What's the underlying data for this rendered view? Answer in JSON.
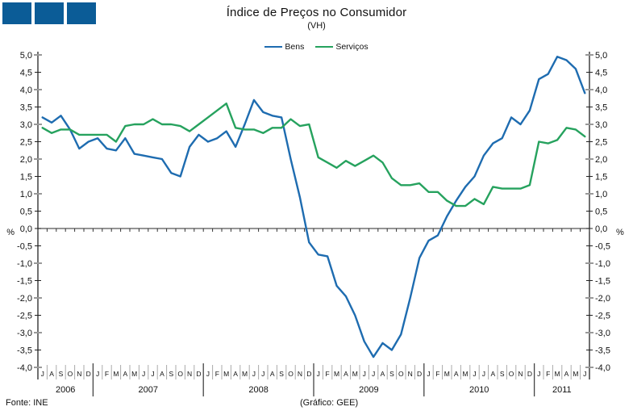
{
  "header": {
    "logo_squares": 3,
    "brand_color": "#0b5c97"
  },
  "title": "Índice de Preços no Consumidor",
  "subtitle": "(VH)",
  "legend": {
    "items": [
      {
        "label": "Bens",
        "color": "#1e6cb0"
      },
      {
        "label": "Serviços",
        "color": "#26a25e"
      }
    ]
  },
  "y_axis": {
    "unit_label_left": "%",
    "unit_label_right": "%",
    "tick_labels": [
      "5,0",
      "4,5",
      "4,0",
      "3,5",
      "3,0",
      "2,5",
      "2,0",
      "1,5",
      "1,0",
      "0,5",
      "0,0",
      "-0,5",
      "-1,0",
      "-1,5",
      "-2,0",
      "-2,5",
      "-3,0",
      "-3,5",
      "-4,0"
    ]
  },
  "footer": {
    "source": "Fonte: INE",
    "credit": "(Gráfico: GEE)"
  },
  "chart_data": {
    "type": "line",
    "title": "Índice de Preços no Consumidor",
    "subtitle": "(VH)",
    "ylabel": "%",
    "ylim": [
      -4.0,
      5.0
    ],
    "ytick_step": 0.5,
    "grid": false,
    "legend_position": "top-center",
    "x_years": [
      {
        "label": "2006",
        "months": [
          "J",
          "A",
          "S",
          "O",
          "N",
          "D"
        ]
      },
      {
        "label": "2007",
        "months": [
          "J",
          "F",
          "M",
          "A",
          "M",
          "J",
          "J",
          "A",
          "S",
          "O",
          "N",
          "D"
        ]
      },
      {
        "label": "2008",
        "months": [
          "J",
          "F",
          "M",
          "A",
          "M",
          "J",
          "J",
          "A",
          "S",
          "O",
          "N",
          "D"
        ]
      },
      {
        "label": "2009",
        "months": [
          "J",
          "F",
          "M",
          "A",
          "M",
          "J",
          "J",
          "A",
          "S",
          "O",
          "N",
          "D"
        ]
      },
      {
        "label": "2010",
        "months": [
          "J",
          "F",
          "M",
          "A",
          "M",
          "J",
          "J",
          "A",
          "S",
          "O",
          "N",
          "D"
        ]
      },
      {
        "label": "2011",
        "months": [
          "J",
          "F",
          "M",
          "A",
          "M",
          "J"
        ]
      }
    ],
    "series": [
      {
        "name": "Bens",
        "color": "#1e6cb0",
        "values": [
          3.2,
          3.05,
          3.25,
          2.85,
          2.3,
          2.5,
          2.6,
          2.3,
          2.25,
          2.6,
          2.15,
          2.1,
          2.05,
          2.0,
          1.6,
          1.5,
          2.35,
          2.7,
          2.5,
          2.6,
          2.8,
          2.35,
          3.0,
          3.7,
          3.35,
          3.25,
          3.2,
          2.0,
          0.9,
          -0.4,
          -0.75,
          -0.8,
          -1.65,
          -1.95,
          -2.5,
          -3.25,
          -3.7,
          -3.3,
          -3.5,
          -3.05,
          -2.0,
          -0.85,
          -0.35,
          -0.2,
          0.35,
          0.8,
          1.2,
          1.5,
          2.1,
          2.45,
          2.6,
          3.2,
          3.0,
          3.4,
          4.3,
          4.45,
          4.95,
          4.85,
          4.6,
          3.9
        ]
      },
      {
        "name": "Serviços",
        "color": "#26a25e",
        "values": [
          2.9,
          2.75,
          2.85,
          2.85,
          2.7,
          2.7,
          2.7,
          2.7,
          2.5,
          2.95,
          3.0,
          3.0,
          3.15,
          3.0,
          3.0,
          2.95,
          2.8,
          3.0,
          3.2,
          3.4,
          3.6,
          2.9,
          2.85,
          2.85,
          2.75,
          2.9,
          2.9,
          3.15,
          2.95,
          3.0,
          2.05,
          1.9,
          1.75,
          1.95,
          1.8,
          1.95,
          2.1,
          1.9,
          1.45,
          1.25,
          1.25,
          1.3,
          1.05,
          1.05,
          0.8,
          0.65,
          0.65,
          0.85,
          0.7,
          1.2,
          1.15,
          1.15,
          1.15,
          1.25,
          2.5,
          2.45,
          2.55,
          2.9,
          2.85,
          2.65
        ]
      }
    ]
  }
}
